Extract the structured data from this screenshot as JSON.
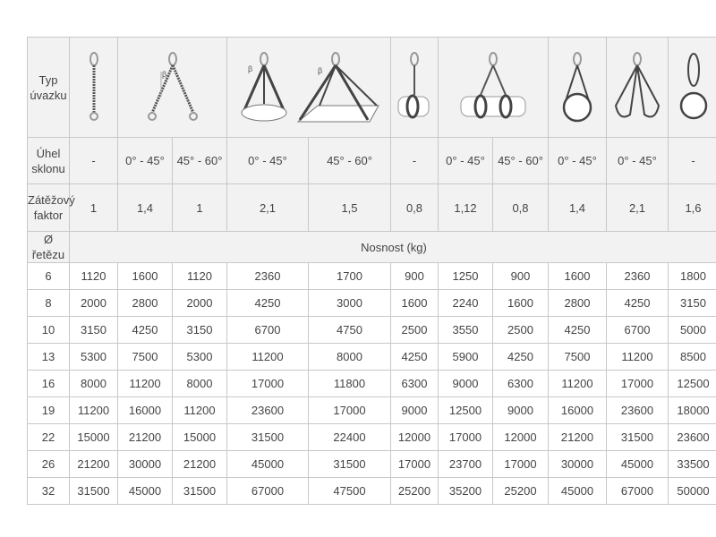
{
  "labels": {
    "type": "Typ úvazku",
    "angle": "Úhel sklonu",
    "factor": "Zátěžový faktor",
    "diameter": "Ø řetězu",
    "capacity": "Nosnost (kg)"
  },
  "icons": [
    "single-leg-chain-icon",
    "two-leg-chain-icon",
    "three-four-leg-chain-icon",
    "single-choke-pipe-icon",
    "two-leg-choke-pipe-icon",
    "single-loop-sling-icon",
    "double-loop-sling-icon",
    "endless-loop-sling-icon"
  ],
  "angles": [
    "-",
    "0° - 45°",
    "45° - 60°",
    "0° - 45°",
    "45° - 60°",
    "-",
    "0° - 45°",
    "45° - 60°",
    "0° - 45°",
    "0° - 45°",
    "-"
  ],
  "factors": [
    "1",
    "1,4",
    "1",
    "2,1",
    "1,5",
    "0,8",
    "1,12",
    "0,8",
    "1,4",
    "2,1",
    "1,6"
  ],
  "rows": [
    [
      "6",
      "1120",
      "1600",
      "1120",
      "2360",
      "1700",
      "900",
      "1250",
      "900",
      "1600",
      "2360",
      "1800"
    ],
    [
      "8",
      "2000",
      "2800",
      "2000",
      "4250",
      "3000",
      "1600",
      "2240",
      "1600",
      "2800",
      "4250",
      "3150"
    ],
    [
      "10",
      "3150",
      "4250",
      "3150",
      "6700",
      "4750",
      "2500",
      "3550",
      "2500",
      "4250",
      "6700",
      "5000"
    ],
    [
      "13",
      "5300",
      "7500",
      "5300",
      "11200",
      "8000",
      "4250",
      "5900",
      "4250",
      "7500",
      "11200",
      "8500"
    ],
    [
      "16",
      "8000",
      "11200",
      "8000",
      "17000",
      "11800",
      "6300",
      "9000",
      "6300",
      "11200",
      "17000",
      "12500"
    ],
    [
      "19",
      "11200",
      "16000",
      "11200",
      "23600",
      "17000",
      "9000",
      "12500",
      "9000",
      "16000",
      "23600",
      "18000"
    ],
    [
      "22",
      "15000",
      "21200",
      "15000",
      "31500",
      "22400",
      "12000",
      "17000",
      "12000",
      "21200",
      "31500",
      "23600"
    ],
    [
      "26",
      "21200",
      "30000",
      "21200",
      "45000",
      "31500",
      "17000",
      "23700",
      "17000",
      "30000",
      "45000",
      "33500"
    ],
    [
      "32",
      "31500",
      "45000",
      "31500",
      "67000",
      "47500",
      "25200",
      "35200",
      "25200",
      "45000",
      "67000",
      "50000"
    ]
  ]
}
